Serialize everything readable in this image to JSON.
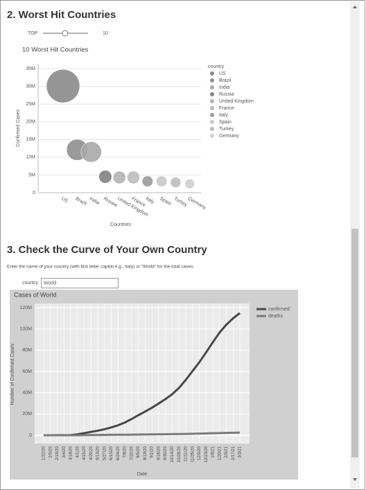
{
  "sections": [
    {
      "heading": "2. Worst Hit Countries"
    },
    {
      "heading": "3. Check the Curve of Your Own Country",
      "instruction": "Enter the name of your country (with first letter capital e.g., Italy) or \"World\" for the total cases:",
      "input_label": "country",
      "input_value": "World"
    }
  ],
  "slider": {
    "label": "TOP",
    "value": 10
  },
  "chart_data": [
    {
      "type": "scatter",
      "title": "10 Worst Hit Countries",
      "categories": [
        "US",
        "Brazil",
        "India",
        "Russia",
        "United Kingdom",
        "France",
        "Italy",
        "Spain",
        "Turkey",
        "Germany"
      ],
      "values": [
        30100000,
        12100000,
        11500000,
        4500000,
        4300000,
        4300000,
        3200000,
        3200000,
        2900000,
        2500000
      ],
      "colors": [
        "#8a8a8a",
        "#8f8f8f",
        "#a9a9a9",
        "#828282",
        "#b4b4b4",
        "#bdbdbd",
        "#9a9a9a",
        "#c8c8c8",
        "#bcbcbc",
        "#cfcfcf"
      ],
      "legend_title": "country",
      "xlabel": "Countries",
      "ylabel": "Confirmed Cases",
      "ylim": [
        0,
        36400000
      ],
      "yticks": [
        0,
        {
          "value": 5000000,
          "label": "5M"
        },
        {
          "value": 10000000,
          "label": "10M"
        },
        {
          "value": 15000000,
          "label": "15M"
        },
        {
          "value": 20000000,
          "label": "20M"
        },
        {
          "value": 25000000,
          "label": "25M"
        },
        {
          "value": 30000000,
          "label": "30M"
        },
        {
          "value": 35000000,
          "label": "35M"
        }
      ],
      "grid": true
    },
    {
      "type": "line",
      "title": "Cases of World",
      "categories": [
        "1/22/20",
        "2/5/20",
        "2/19/20",
        "3/4/20",
        "3/18/20",
        "4/1/20",
        "4/15/20",
        "4/29/20",
        "5/13/20",
        "5/27/20",
        "6/10/20",
        "6/24/20",
        "7/8/20",
        "7/22/20",
        "8/5/20",
        "8/19/20",
        "9/2/20",
        "9/16/20",
        "9/30/20",
        "10/14/20",
        "10/28/20",
        "11/11/20",
        "11/25/20",
        "12/9/20",
        "12/23/20",
        "1/6/21",
        "1/20/21",
        "2/3/21",
        "2/17/21",
        "3/3/21"
      ],
      "series": [
        {
          "name": "confirmed",
          "color": "#474747",
          "values": [
            600,
            28000,
            75000,
            95000,
            210000,
            930000,
            2000000,
            3200000,
            4300000,
            5700000,
            7400000,
            9400000,
            12000000,
            15300000,
            18900000,
            22300000,
            25900000,
            29900000,
            34000000,
            38600000,
            44500000,
            52000000,
            60400000,
            68600000,
            77800000,
            87500000,
            96600000,
            104000000,
            110000000,
            115000000
          ]
        },
        {
          "name": "deaths",
          "color": "#7a7a7a",
          "values": [
            17,
            560,
            2100,
            3300,
            8700,
            47000,
            134000,
            228000,
            292000,
            350000,
            418000,
            488000,
            551000,
            624000,
            707000,
            787000,
            860000,
            934000,
            1010000,
            1090000,
            1170000,
            1280000,
            1430000,
            1580000,
            1720000,
            1890000,
            2070000,
            2250000,
            2410000,
            2550000
          ]
        }
      ],
      "xlabel": "Date",
      "ylabel": "Number of Confirmed Cases",
      "ylim": [
        -7800000,
        123900000
      ],
      "yticks": [
        0,
        {
          "value": 20000000,
          "label": "20M"
        },
        {
          "value": 40000000,
          "label": "40M"
        },
        {
          "value": 60000000,
          "label": "60M"
        },
        {
          "value": 80000000,
          "label": "80M"
        },
        {
          "value": 100000000,
          "label": "100M"
        },
        {
          "value": 120000000,
          "label": "120M"
        }
      ],
      "grid": true
    }
  ]
}
